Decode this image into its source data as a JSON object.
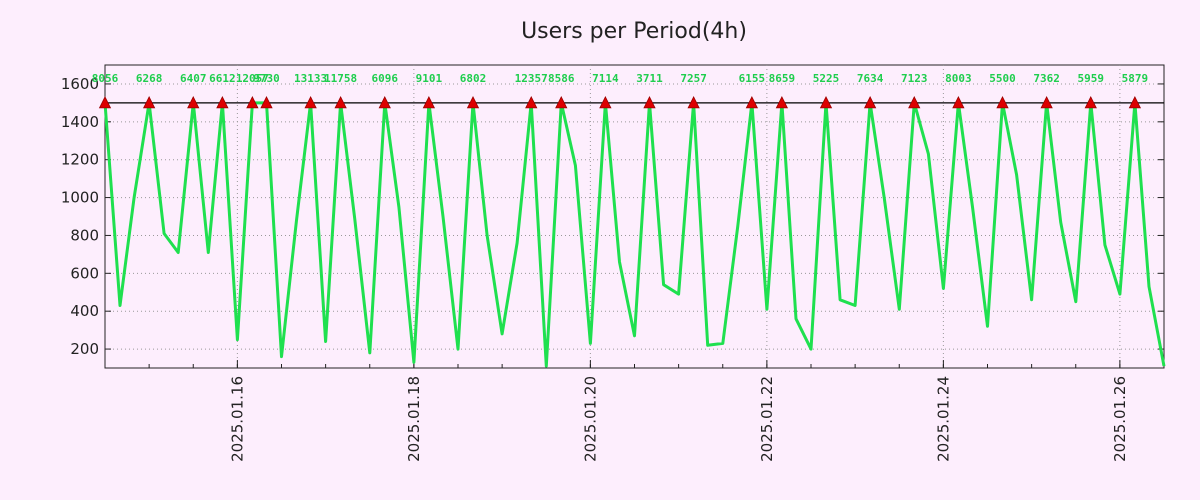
{
  "chart_data": {
    "type": "line",
    "title": "Users per Period(4h)",
    "xlabel": "",
    "ylabel": "",
    "x_unit": "days since 2025-01-16 00:00",
    "xlim": [
      -1.5,
      10.5
    ],
    "ylim": [
      100,
      1700
    ],
    "grid": true,
    "line_color": "#1fe04f",
    "threshold": {
      "value": 1500,
      "color": "#000000"
    },
    "marker_color": "#dd0000",
    "label_color": "#1fce4e",
    "background": "#fdeefd",
    "x_ticks": [
      {
        "x": 0,
        "label": "2025.01.16"
      },
      {
        "x": 2,
        "label": "2025.01.18"
      },
      {
        "x": 4,
        "label": "2025.01.20"
      },
      {
        "x": 6,
        "label": "2025.01.22"
      },
      {
        "x": 8,
        "label": "2025.01.24"
      },
      {
        "x": 10,
        "label": "2025.01.26"
      }
    ],
    "y_ticks": [
      200,
      400,
      600,
      800,
      1000,
      1200,
      1400,
      1600
    ],
    "series": [
      {
        "name": "Users",
        "points": [
          [
            -1.5,
            1500
          ],
          [
            -1.33,
            430
          ],
          [
            -1.17,
            1000
          ],
          [
            -1.0,
            1500
          ],
          [
            -0.83,
            810
          ],
          [
            -0.67,
            710
          ],
          [
            -0.5,
            1500
          ],
          [
            -0.33,
            710
          ],
          [
            -0.17,
            1500
          ],
          [
            -0.0,
            250
          ],
          [
            0.17,
            1500
          ],
          [
            0.33,
            1500
          ],
          [
            0.5,
            160
          ],
          [
            0.67,
            880
          ],
          [
            0.83,
            1500
          ],
          [
            1.0,
            240
          ],
          [
            1.17,
            1500
          ],
          [
            1.33,
            890
          ],
          [
            1.5,
            180
          ],
          [
            1.67,
            1500
          ],
          [
            1.83,
            950
          ],
          [
            2.0,
            130
          ],
          [
            2.17,
            1500
          ],
          [
            2.33,
            900
          ],
          [
            2.5,
            200
          ],
          [
            2.67,
            1500
          ],
          [
            2.83,
            800
          ],
          [
            3.0,
            280
          ],
          [
            3.17,
            760
          ],
          [
            3.33,
            1500
          ],
          [
            3.5,
            110
          ],
          [
            3.67,
            1500
          ],
          [
            3.83,
            1170
          ],
          [
            4.0,
            230
          ],
          [
            4.17,
            1500
          ],
          [
            4.33,
            660
          ],
          [
            4.5,
            270
          ],
          [
            4.67,
            1500
          ],
          [
            4.83,
            540
          ],
          [
            5.0,
            490
          ],
          [
            5.17,
            1500
          ],
          [
            5.33,
            220
          ],
          [
            5.5,
            230
          ],
          [
            5.67,
            850
          ],
          [
            5.83,
            1500
          ],
          [
            6.0,
            410
          ],
          [
            6.17,
            1500
          ],
          [
            6.33,
            360
          ],
          [
            6.5,
            200
          ],
          [
            6.67,
            1500
          ],
          [
            6.83,
            460
          ],
          [
            7.0,
            430
          ],
          [
            7.17,
            1500
          ],
          [
            7.33,
            1000
          ],
          [
            7.5,
            410
          ],
          [
            7.67,
            1500
          ],
          [
            7.83,
            1230
          ],
          [
            8.0,
            520
          ],
          [
            8.17,
            1500
          ],
          [
            8.33,
            950
          ],
          [
            8.5,
            320
          ],
          [
            8.67,
            1500
          ],
          [
            8.83,
            1120
          ],
          [
            9.0,
            460
          ],
          [
            9.17,
            1500
          ],
          [
            9.33,
            870
          ],
          [
            9.5,
            450
          ],
          [
            9.67,
            1500
          ],
          [
            9.83,
            750
          ],
          [
            10.0,
            490
          ],
          [
            10.17,
            1500
          ],
          [
            10.33,
            530
          ],
          [
            10.5,
            110
          ]
        ]
      }
    ],
    "peaks": [
      {
        "x": -1.5,
        "label": "8056"
      },
      {
        "x": -1.0,
        "label": "6268"
      },
      {
        "x": -0.5,
        "label": "6407"
      },
      {
        "x": -0.17,
        "label": "6612"
      },
      {
        "x": 0.17,
        "label": "12057"
      },
      {
        "x": 0.33,
        "label": "9730"
      },
      {
        "x": 0.83,
        "label": "13133"
      },
      {
        "x": 1.17,
        "label": "11758"
      },
      {
        "x": 1.67,
        "label": "6096"
      },
      {
        "x": 2.17,
        "label": "9101"
      },
      {
        "x": 2.67,
        "label": "6802"
      },
      {
        "x": 3.33,
        "label": "12357"
      },
      {
        "x": 3.67,
        "label": "8586"
      },
      {
        "x": 4.17,
        "label": "7114"
      },
      {
        "x": 4.67,
        "label": "3711"
      },
      {
        "x": 5.17,
        "label": "7257"
      },
      {
        "x": 5.83,
        "label": "6155"
      },
      {
        "x": 6.17,
        "label": "8659"
      },
      {
        "x": 6.67,
        "label": "5225"
      },
      {
        "x": 7.17,
        "label": "7634"
      },
      {
        "x": 7.67,
        "label": "7123"
      },
      {
        "x": 8.17,
        "label": "8003"
      },
      {
        "x": 8.67,
        "label": "5500"
      },
      {
        "x": 9.17,
        "label": "7362"
      },
      {
        "x": 9.67,
        "label": "5959"
      },
      {
        "x": 10.17,
        "label": "5879"
      }
    ]
  }
}
